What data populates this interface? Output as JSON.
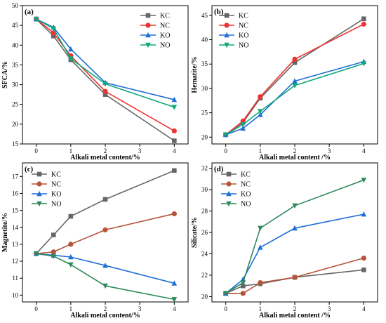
{
  "chart_data": [
    {
      "id": "a",
      "type": "line",
      "panel_label": "(a)",
      "xlabel": "Alkali metal content/%",
      "ylabel": "SFCA/%",
      "xlim": [
        -0.4,
        4.4
      ],
      "ylim": [
        15,
        50
      ],
      "xticks": [
        0,
        1,
        2,
        3,
        4
      ],
      "yticks": [
        15,
        20,
        25,
        30,
        35,
        40,
        45,
        50
      ],
      "x": [
        0,
        0.5,
        1,
        2,
        4
      ],
      "legend_position": "top-right",
      "grid": false,
      "series": [
        {
          "name": "KC",
          "color": "#666666",
          "marker": "square",
          "values": [
            46.6,
            42.3,
            36.3,
            27.5,
            15.8
          ]
        },
        {
          "name": "NC",
          "color": "#ee3333",
          "marker": "circle",
          "values": [
            46.6,
            43.1,
            37.3,
            28.3,
            18.3
          ]
        },
        {
          "name": "KO",
          "color": "#1f6fd6",
          "marker": "triangle-up",
          "values": [
            46.6,
            44.5,
            39.0,
            30.5,
            26.2
          ]
        },
        {
          "name": "NO",
          "color": "#11a87a",
          "marker": "triangle-down",
          "values": [
            46.6,
            44.2,
            36.6,
            30.2,
            24.3
          ]
        }
      ]
    },
    {
      "id": "b",
      "type": "line",
      "panel_label": "(b)",
      "xlabel": "Alkali metal content /%",
      "ylabel": "Hematite/%",
      "xlim": [
        -0.4,
        4.4
      ],
      "ylim": [
        18.6,
        47
      ],
      "xticks": [
        0,
        1,
        2,
        3,
        4
      ],
      "yticks": [
        20,
        25,
        30,
        35,
        40,
        45
      ],
      "x": [
        0,
        0.5,
        1,
        2,
        4
      ],
      "legend_position": "top-left",
      "grid": false,
      "series": [
        {
          "name": "KC",
          "color": "#666666",
          "marker": "square",
          "values": [
            20.5,
            23.0,
            28.0,
            35.3,
            44.3
          ]
        },
        {
          "name": "NC",
          "color": "#ee3333",
          "marker": "circle",
          "values": [
            20.5,
            23.3,
            28.3,
            36.0,
            43.2
          ]
        },
        {
          "name": "KO",
          "color": "#1f6fd6",
          "marker": "triangle-up",
          "values": [
            20.5,
            21.8,
            24.6,
            31.5,
            35.5
          ]
        },
        {
          "name": "NO",
          "color": "#11a87a",
          "marker": "triangle-down",
          "values": [
            20.5,
            22.6,
            25.3,
            30.6,
            35.1
          ]
        }
      ]
    },
    {
      "id": "c",
      "type": "line",
      "panel_label": "(c)",
      "xlabel": "Alkali metal content/%",
      "ylabel": "Magnetite/%",
      "xlim": [
        -0.4,
        4.4
      ],
      "ylim": [
        9.6,
        17.8
      ],
      "xticks": [
        0,
        1,
        2,
        3,
        4
      ],
      "yticks": [
        10,
        11,
        12,
        13,
        14,
        15,
        16,
        17
      ],
      "x": [
        0,
        0.5,
        1,
        2,
        4
      ],
      "legend_position": "top-left",
      "grid": false,
      "series": [
        {
          "name": "KC",
          "color": "#666666",
          "marker": "square",
          "values": [
            12.45,
            13.55,
            14.65,
            15.65,
            17.35
          ]
        },
        {
          "name": "NC",
          "color": "#b5543a",
          "marker": "circle",
          "values": [
            12.45,
            12.55,
            13.0,
            13.85,
            14.8
          ]
        },
        {
          "name": "KO",
          "color": "#1f6fd6",
          "marker": "triangle-up",
          "values": [
            12.45,
            12.35,
            12.25,
            11.75,
            10.7
          ]
        },
        {
          "name": "NO",
          "color": "#2e8a5a",
          "marker": "triangle-down",
          "values": [
            12.45,
            12.3,
            11.8,
            10.55,
            9.75
          ]
        }
      ]
    },
    {
      "id": "d",
      "type": "line",
      "panel_label": "(d)",
      "xlabel": "Alkali metal content /%",
      "ylabel": "Silicate/%",
      "xlim": [
        -0.4,
        4.4
      ],
      "ylim": [
        19.5,
        32.5
      ],
      "xticks": [
        0,
        1,
        2,
        3,
        4
      ],
      "yticks": [
        20,
        22,
        24,
        26,
        28,
        30,
        32
      ],
      "x": [
        0,
        0.5,
        1,
        2,
        4
      ],
      "legend_position": "top-left",
      "grid": false,
      "series": [
        {
          "name": "KC",
          "color": "#666666",
          "marker": "square",
          "values": [
            20.3,
            21.0,
            21.2,
            21.8,
            22.5
          ]
        },
        {
          "name": "NC",
          "color": "#b5543a",
          "marker": "circle",
          "values": [
            20.3,
            20.3,
            21.3,
            21.8,
            23.6
          ]
        },
        {
          "name": "KO",
          "color": "#1f6fd6",
          "marker": "triangle-up",
          "values": [
            20.3,
            21.6,
            24.6,
            26.4,
            27.7
          ]
        },
        {
          "name": "NO",
          "color": "#2e8a5a",
          "marker": "triangle-down",
          "values": [
            20.3,
            21.3,
            26.4,
            28.5,
            30.9
          ]
        }
      ]
    }
  ]
}
